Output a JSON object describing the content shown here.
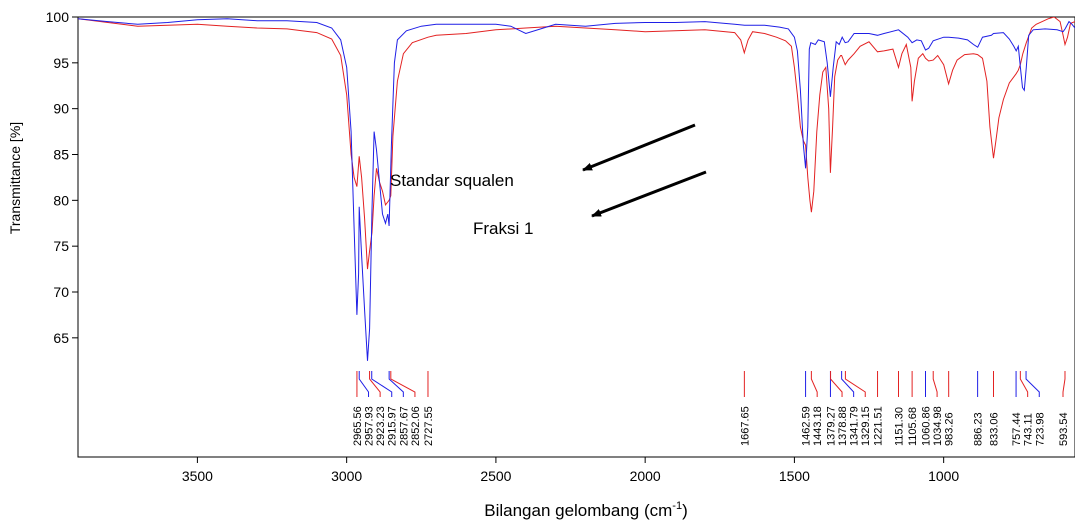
{
  "chart_data": {
    "type": "line",
    "xlabel": "Bilangan gelombang (cm",
    "xlabel_sup": "-1",
    "xlabel_end": ")",
    "ylabel": "Transmittance [%]",
    "xlim": [
      3900,
      560
    ],
    "ylim": [
      52,
      100
    ],
    "x_ticks": [
      3500,
      3000,
      2500,
      2000,
      1500,
      1000
    ],
    "y_ticks": [
      65,
      70,
      75,
      80,
      85,
      90,
      95,
      100
    ],
    "colors": {
      "standard": "#1f1fe6",
      "fraction": "#e32222"
    },
    "annotations": [
      {
        "text": "Standar squalen",
        "target": "standard"
      },
      {
        "text": "Fraksi 1",
        "target": "fraction"
      }
    ],
    "series": [
      {
        "key": "standard",
        "points": [
          [
            3900,
            99.8
          ],
          [
            3800,
            99.5
          ],
          [
            3700,
            99.2
          ],
          [
            3600,
            99.4
          ],
          [
            3500,
            99.7
          ],
          [
            3400,
            99.8
          ],
          [
            3300,
            99.6
          ],
          [
            3200,
            99.6
          ],
          [
            3100,
            99.4
          ],
          [
            3050,
            98.8
          ],
          [
            3020,
            97.5
          ],
          [
            3000,
            94.5
          ],
          [
            2985,
            87.5
          ],
          [
            2975,
            77.0
          ],
          [
            2965.6,
            67.5
          ],
          [
            2960,
            72.0
          ],
          [
            2957.9,
            79.3
          ],
          [
            2950,
            74.0
          ],
          [
            2940,
            68.0
          ],
          [
            2930,
            62.5
          ],
          [
            2923.2,
            66.0
          ],
          [
            2915,
            79.0
          ],
          [
            2908,
            87.5
          ],
          [
            2900,
            85.5
          ],
          [
            2890,
            82.0
          ],
          [
            2880,
            78.5
          ],
          [
            2870,
            77.5
          ],
          [
            2862,
            78.5
          ],
          [
            2857.7,
            77.2
          ],
          [
            2850,
            86.0
          ],
          [
            2840,
            95.0
          ],
          [
            2830,
            97.5
          ],
          [
            2800,
            98.5
          ],
          [
            2750,
            99.0
          ],
          [
            2700,
            99.2
          ],
          [
            2600,
            99.2
          ],
          [
            2500,
            99.2
          ],
          [
            2450,
            99.0
          ],
          [
            2400,
            98.2
          ],
          [
            2350,
            98.7
          ],
          [
            2300,
            99.2
          ],
          [
            2200,
            99.0
          ],
          [
            2100,
            99.3
          ],
          [
            2000,
            99.4
          ],
          [
            1900,
            99.4
          ],
          [
            1800,
            99.5
          ],
          [
            1700,
            99.2
          ],
          [
            1667,
            99.1
          ],
          [
            1600,
            99.1
          ],
          [
            1550,
            98.9
          ],
          [
            1520,
            98.7
          ],
          [
            1500,
            97.8
          ],
          [
            1490,
            96.3
          ],
          [
            1480,
            92.0
          ],
          [
            1470,
            86.0
          ],
          [
            1462.6,
            83.5
          ],
          [
            1455,
            88.0
          ],
          [
            1450,
            96.5
          ],
          [
            1445,
            97.2
          ],
          [
            1430,
            97.0
          ],
          [
            1420,
            97.5
          ],
          [
            1400,
            97.3
          ],
          [
            1390,
            95.0
          ],
          [
            1379.3,
            91.3
          ],
          [
            1370,
            94.5
          ],
          [
            1360,
            97.3
          ],
          [
            1350,
            97.0
          ],
          [
            1340,
            97.8
          ],
          [
            1330,
            97.2
          ],
          [
            1320,
            97.3
          ],
          [
            1300,
            98.2
          ],
          [
            1250,
            98.2
          ],
          [
            1221.5,
            98.0
          ],
          [
            1200,
            98.2
          ],
          [
            1151.3,
            98.6
          ],
          [
            1120,
            97.8
          ],
          [
            1105.7,
            97.2
          ],
          [
            1090,
            97.5
          ],
          [
            1075,
            97.4
          ],
          [
            1060.9,
            96.4
          ],
          [
            1050,
            96.6
          ],
          [
            1035,
            97.4
          ],
          [
            1000,
            97.8
          ],
          [
            983,
            97.8
          ],
          [
            950,
            97.7
          ],
          [
            920,
            97.5
          ],
          [
            900,
            97.0
          ],
          [
            886,
            96.7
          ],
          [
            870,
            97.8
          ],
          [
            840,
            98.0
          ],
          [
            833,
            98.2
          ],
          [
            800,
            98.3
          ],
          [
            780,
            97.6
          ],
          [
            765,
            96.8
          ],
          [
            757,
            96.3
          ],
          [
            750,
            96.8
          ],
          [
            743,
            94.5
          ],
          [
            736,
            92.3
          ],
          [
            730,
            92.0
          ],
          [
            723,
            94.5
          ],
          [
            715,
            98.0
          ],
          [
            700,
            98.6
          ],
          [
            660,
            98.7
          ],
          [
            620,
            98.6
          ],
          [
            600,
            98.4
          ],
          [
            593,
            98.7
          ],
          [
            580,
            99.5
          ],
          [
            570,
            99.2
          ],
          [
            560,
            98.8
          ]
        ]
      },
      {
        "key": "fraction",
        "points": [
          [
            3900,
            99.8
          ],
          [
            3800,
            99.4
          ],
          [
            3700,
            99.0
          ],
          [
            3600,
            99.1
          ],
          [
            3500,
            99.2
          ],
          [
            3400,
            99.0
          ],
          [
            3300,
            98.8
          ],
          [
            3200,
            98.7
          ],
          [
            3100,
            98.3
          ],
          [
            3050,
            97.6
          ],
          [
            3020,
            95.8
          ],
          [
            3000,
            91.5
          ],
          [
            2985,
            85.0
          ],
          [
            2975,
            82.5
          ],
          [
            2965.6,
            81.5
          ],
          [
            2957.9,
            84.8
          ],
          [
            2950,
            82.5
          ],
          [
            2940,
            78.0
          ],
          [
            2930,
            72.5
          ],
          [
            2923.2,
            74.5
          ],
          [
            2915,
            76.5
          ],
          [
            2908,
            80.5
          ],
          [
            2900,
            83.5
          ],
          [
            2890,
            82.0
          ],
          [
            2880,
            81.0
          ],
          [
            2870,
            79.5
          ],
          [
            2857.7,
            80.0
          ],
          [
            2852,
            80.5
          ],
          [
            2845,
            87.0
          ],
          [
            2830,
            93.0
          ],
          [
            2810,
            96.0
          ],
          [
            2780,
            97.2
          ],
          [
            2727.6,
            97.8
          ],
          [
            2700,
            98.0
          ],
          [
            2600,
            98.2
          ],
          [
            2500,
            98.6
          ],
          [
            2400,
            98.8
          ],
          [
            2300,
            99.0
          ],
          [
            2200,
            98.8
          ],
          [
            2100,
            98.6
          ],
          [
            2000,
            98.4
          ],
          [
            1900,
            98.5
          ],
          [
            1800,
            98.6
          ],
          [
            1700,
            98.3
          ],
          [
            1680,
            97.5
          ],
          [
            1667.7,
            96.1
          ],
          [
            1655,
            97.5
          ],
          [
            1640,
            98.4
          ],
          [
            1600,
            98.2
          ],
          [
            1560,
            97.8
          ],
          [
            1530,
            97.4
          ],
          [
            1510,
            96.8
          ],
          [
            1500,
            94.5
          ],
          [
            1490,
            91.5
          ],
          [
            1480,
            88.0
          ],
          [
            1470,
            86.5
          ],
          [
            1462.6,
            86.0
          ],
          [
            1455,
            82.5
          ],
          [
            1448,
            80.0
          ],
          [
            1443.2,
            78.7
          ],
          [
            1435,
            81.0
          ],
          [
            1425,
            87.5
          ],
          [
            1415,
            91.5
          ],
          [
            1405,
            94.0
          ],
          [
            1395,
            94.5
          ],
          [
            1385,
            90.0
          ],
          [
            1379.3,
            83.0
          ],
          [
            1372,
            88.0
          ],
          [
            1365,
            93.5
          ],
          [
            1355,
            95.3
          ],
          [
            1345,
            95.8
          ],
          [
            1341.8,
            95.8
          ],
          [
            1330,
            94.8
          ],
          [
            1320,
            95.3
          ],
          [
            1300,
            96.0
          ],
          [
            1280,
            96.8
          ],
          [
            1250,
            97.3
          ],
          [
            1221.5,
            96.2
          ],
          [
            1200,
            96.3
          ],
          [
            1170,
            96.5
          ],
          [
            1151.3,
            94.5
          ],
          [
            1140,
            96.0
          ],
          [
            1125,
            97.0
          ],
          [
            1110,
            94.5
          ],
          [
            1105.7,
            90.8
          ],
          [
            1098,
            93.0
          ],
          [
            1085,
            95.5
          ],
          [
            1070,
            96.0
          ],
          [
            1060.9,
            95.5
          ],
          [
            1050,
            95.2
          ],
          [
            1034.9,
            95.3
          ],
          [
            1020,
            95.8
          ],
          [
            1000,
            94.8
          ],
          [
            983.3,
            92.7
          ],
          [
            970,
            94.2
          ],
          [
            955,
            95.3
          ],
          [
            930,
            95.9
          ],
          [
            900,
            96.0
          ],
          [
            886.2,
            95.9
          ],
          [
            870,
            95.5
          ],
          [
            855,
            93.0
          ],
          [
            845,
            88.0
          ],
          [
            833.1,
            84.6
          ],
          [
            825,
            86.5
          ],
          [
            815,
            89.0
          ],
          [
            800,
            91.0
          ],
          [
            780,
            92.8
          ],
          [
            757.4,
            93.8
          ],
          [
            750,
            94.2
          ],
          [
            743.1,
            94.8
          ],
          [
            735,
            96.0
          ],
          [
            723,
            97.2
          ],
          [
            705,
            98.8
          ],
          [
            690,
            99.2
          ],
          [
            670,
            99.5
          ],
          [
            650,
            99.8
          ],
          [
            630,
            100.0
          ],
          [
            610,
            99.5
          ],
          [
            600,
            98.0
          ],
          [
            593.5,
            97.0
          ],
          [
            585,
            97.8
          ],
          [
            575,
            99.3
          ],
          [
            560,
            99.5
          ]
        ]
      }
    ],
    "peaks": [
      {
        "label": "2965.56",
        "color": "red"
      },
      {
        "label": "2957.93",
        "color": "blue"
      },
      {
        "label": "2923.23",
        "color": "red"
      },
      {
        "label": "2915.97",
        "color": "blue"
      },
      {
        "label": "2857.67",
        "color": "blue"
      },
      {
        "label": "2852.06",
        "color": "red"
      },
      {
        "label": "2727.55",
        "color": "red"
      },
      {
        "label": "1667.65",
        "color": "red"
      },
      {
        "label": "1462.59",
        "color": "blue"
      },
      {
        "label": "1443.18",
        "color": "red"
      },
      {
        "label": "1379.27",
        "color": "blue"
      },
      {
        "label": "1378.88",
        "color": "red"
      },
      {
        "label": "1341.79",
        "color": "blue"
      },
      {
        "label": "1329.15",
        "color": "red"
      },
      {
        "label": "1221.51",
        "color": "red"
      },
      {
        "label": "1151.30",
        "color": "red"
      },
      {
        "label": "1105.68",
        "color": "red"
      },
      {
        "label": "1060.86",
        "color": "blue"
      },
      {
        "label": "1034.98",
        "color": "red"
      },
      {
        "label": "983.26",
        "color": "red"
      },
      {
        "label": "886.23",
        "color": "blue"
      },
      {
        "label": "833.06",
        "color": "red"
      },
      {
        "label": "757.44",
        "color": "blue"
      },
      {
        "label": "743.11",
        "color": "red"
      },
      {
        "label": "723.98",
        "color": "blue"
      },
      {
        "label": "593.54",
        "color": "red"
      }
    ]
  }
}
